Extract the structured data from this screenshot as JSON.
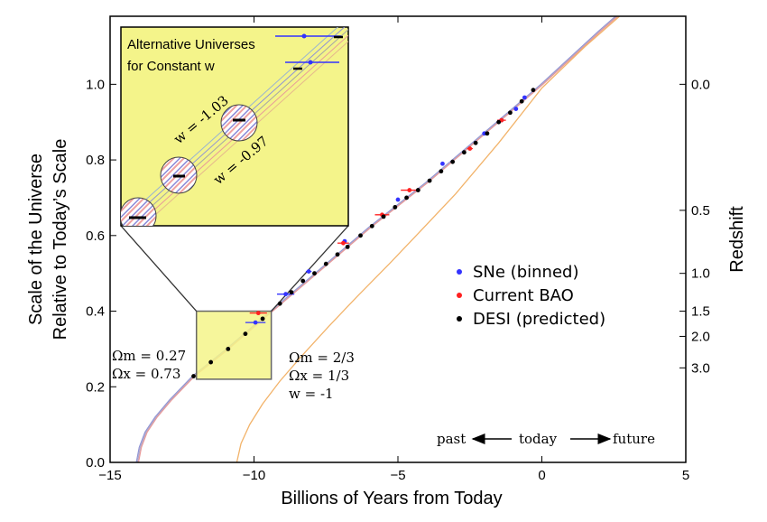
{
  "chart_data": {
    "type": "scatter",
    "xlabel": "Billions of Years from Today",
    "ylabel_line1": "Scale of the Universe",
    "ylabel_line2": "Relative to Today’s Scale",
    "y2label": "Redshift",
    "xlim": [
      -15,
      5
    ],
    "ylim": [
      0,
      1.18
    ],
    "x_ticks": [
      -15,
      -10,
      -5,
      0,
      5
    ],
    "x_tick_labels": [
      "−15",
      "−10",
      "−5",
      "0",
      "5"
    ],
    "y_ticks": [
      0.0,
      0.2,
      0.4,
      0.6,
      0.8,
      1.0
    ],
    "y_tick_labels": [
      "0.0",
      "0.2",
      "0.4",
      "0.6",
      "0.8",
      "1.0"
    ],
    "redshift_ticks": [
      {
        "label": "0.0",
        "z": 0.0
      },
      {
        "label": "0.5",
        "z": 0.5
      },
      {
        "label": "1.0",
        "z": 1.0
      },
      {
        "label": "1.5",
        "z": 1.5
      },
      {
        "label": "2.0",
        "z": 2.0
      },
      {
        "label": "3.0",
        "z": 3.0
      }
    ],
    "grid": false,
    "legend": {
      "position": "right",
      "entries": [
        {
          "label": "SNe (binned)",
          "color": "#3333ff"
        },
        {
          "label": "Current BAO",
          "color": "#ff2020"
        },
        {
          "label": "DESI (predicted)",
          "color": "#000000"
        }
      ]
    },
    "series": [
      {
        "name": "SNe (binned)",
        "color": "#3333ff",
        "points": [
          {
            "x": -9.95,
            "y": 0.37,
            "xerr": 0.35
          },
          {
            "x": -8.9,
            "y": 0.445,
            "xerr": 0.3
          },
          {
            "x": -8.1,
            "y": 0.505,
            "xerr": 0.1
          },
          {
            "x": -6.85,
            "y": 0.585,
            "xerr": 0.05
          },
          {
            "x": -5.0,
            "y": 0.695,
            "xerr": 0.05
          },
          {
            "x": -3.45,
            "y": 0.79,
            "xerr": 0.05
          },
          {
            "x": -2.0,
            "y": 0.87,
            "xerr": 0.05
          },
          {
            "x": -1.4,
            "y": 0.905,
            "xerr": 0.05
          },
          {
            "x": -0.9,
            "y": 0.935,
            "xerr": 0.05
          },
          {
            "x": -0.6,
            "y": 0.965,
            "xerr": 0.05
          }
        ]
      },
      {
        "name": "Current BAO",
        "color": "#ff2020",
        "points": [
          {
            "x": -9.85,
            "y": 0.395,
            "xerr": 0.3
          },
          {
            "x": -6.9,
            "y": 0.58,
            "xerr": 0.2
          },
          {
            "x": -5.55,
            "y": 0.655,
            "xerr": 0.25
          },
          {
            "x": -4.6,
            "y": 0.72,
            "xerr": 0.3
          },
          {
            "x": -2.5,
            "y": 0.83,
            "xerr": 0.1
          },
          {
            "x": -1.4,
            "y": 0.905,
            "xerr": 0.15
          }
        ]
      },
      {
        "name": "DESI (predicted)",
        "color": "#000000",
        "points": [
          {
            "x": -12.1,
            "y": 0.228
          },
          {
            "x": -11.5,
            "y": 0.265
          },
          {
            "x": -10.9,
            "y": 0.3
          },
          {
            "x": -10.3,
            "y": 0.34
          },
          {
            "x": -9.7,
            "y": 0.38
          },
          {
            "x": -9.1,
            "y": 0.42
          },
          {
            "x": -8.7,
            "y": 0.45
          },
          {
            "x": -8.3,
            "y": 0.48
          },
          {
            "x": -7.9,
            "y": 0.5
          },
          {
            "x": -7.5,
            "y": 0.525
          },
          {
            "x": -7.1,
            "y": 0.55
          },
          {
            "x": -6.75,
            "y": 0.57
          },
          {
            "x": -6.3,
            "y": 0.6
          },
          {
            "x": -5.9,
            "y": 0.625
          },
          {
            "x": -5.5,
            "y": 0.65
          },
          {
            "x": -5.1,
            "y": 0.675
          },
          {
            "x": -4.7,
            "y": 0.7
          },
          {
            "x": -4.3,
            "y": 0.72
          },
          {
            "x": -3.9,
            "y": 0.745
          },
          {
            "x": -3.5,
            "y": 0.77
          },
          {
            "x": -3.1,
            "y": 0.795
          },
          {
            "x": -2.7,
            "y": 0.82
          },
          {
            "x": -2.3,
            "y": 0.845
          },
          {
            "x": -1.9,
            "y": 0.87
          },
          {
            "x": -1.5,
            "y": 0.9
          },
          {
            "x": -1.1,
            "y": 0.925
          },
          {
            "x": -0.7,
            "y": 0.955
          },
          {
            "x": -0.3,
            "y": 0.985
          }
        ]
      }
    ],
    "curves": [
      {
        "name": "ΛCDM (Ωm = 0.27, Ωx = 0.73)",
        "color": "#7a86d8",
        "points": [
          {
            "x": -14.05,
            "y": 0.0
          },
          {
            "x": -13.95,
            "y": 0.04
          },
          {
            "x": -13.75,
            "y": 0.08
          },
          {
            "x": -13.4,
            "y": 0.12
          },
          {
            "x": -12.9,
            "y": 0.165
          },
          {
            "x": -12.1,
            "y": 0.228
          },
          {
            "x": -11.0,
            "y": 0.295
          },
          {
            "x": -9.7,
            "y": 0.38
          },
          {
            "x": -8.0,
            "y": 0.49
          },
          {
            "x": -6.0,
            "y": 0.62
          },
          {
            "x": -4.0,
            "y": 0.74
          },
          {
            "x": -2.0,
            "y": 0.87
          },
          {
            "x": 0.0,
            "y": 1.0
          },
          {
            "x": 1.0,
            "y": 1.07
          },
          {
            "x": 2.0,
            "y": 1.14
          },
          {
            "x": 2.6,
            "y": 1.18
          }
        ]
      },
      {
        "name": "Ωm = 2/3, Ωx = 1/3, w = -1",
        "color": "#f2b36a",
        "points": [
          {
            "x": -10.6,
            "y": 0.0
          },
          {
            "x": -10.45,
            "y": 0.05
          },
          {
            "x": -10.15,
            "y": 0.1
          },
          {
            "x": -9.7,
            "y": 0.155
          },
          {
            "x": -9.1,
            "y": 0.215
          },
          {
            "x": -8.3,
            "y": 0.285
          },
          {
            "x": -7.4,
            "y": 0.36
          },
          {
            "x": -6.4,
            "y": 0.44
          },
          {
            "x": -5.3,
            "y": 0.525
          },
          {
            "x": -4.3,
            "y": 0.605
          },
          {
            "x": -3.0,
            "y": 0.71
          },
          {
            "x": -1.5,
            "y": 0.845
          },
          {
            "x": 0.0,
            "y": 0.99
          },
          {
            "x": 1.5,
            "y": 1.1
          },
          {
            "x": 2.7,
            "y": 1.18
          }
        ]
      }
    ],
    "annotations": {
      "lcdm_params": [
        "Ωm = 0.27",
        "Ωx = 0.73"
      ],
      "alt_params": [
        "Ωm = 2/3",
        "Ωx = 1/3",
        "w = -1"
      ],
      "arrow_past": "past",
      "arrow_today": "today",
      "arrow_future": "future"
    },
    "inset": {
      "title_line1": "Alternative Universes",
      "title_line2": "for Constant w",
      "label_w1": "w = -1.03",
      "label_w2": "w = -0.97",
      "background": "#f4f48a",
      "zoom_region": {
        "xlim": [
          -12,
          -9.4
        ],
        "ylim": [
          0.22,
          0.4
        ]
      }
    }
  }
}
